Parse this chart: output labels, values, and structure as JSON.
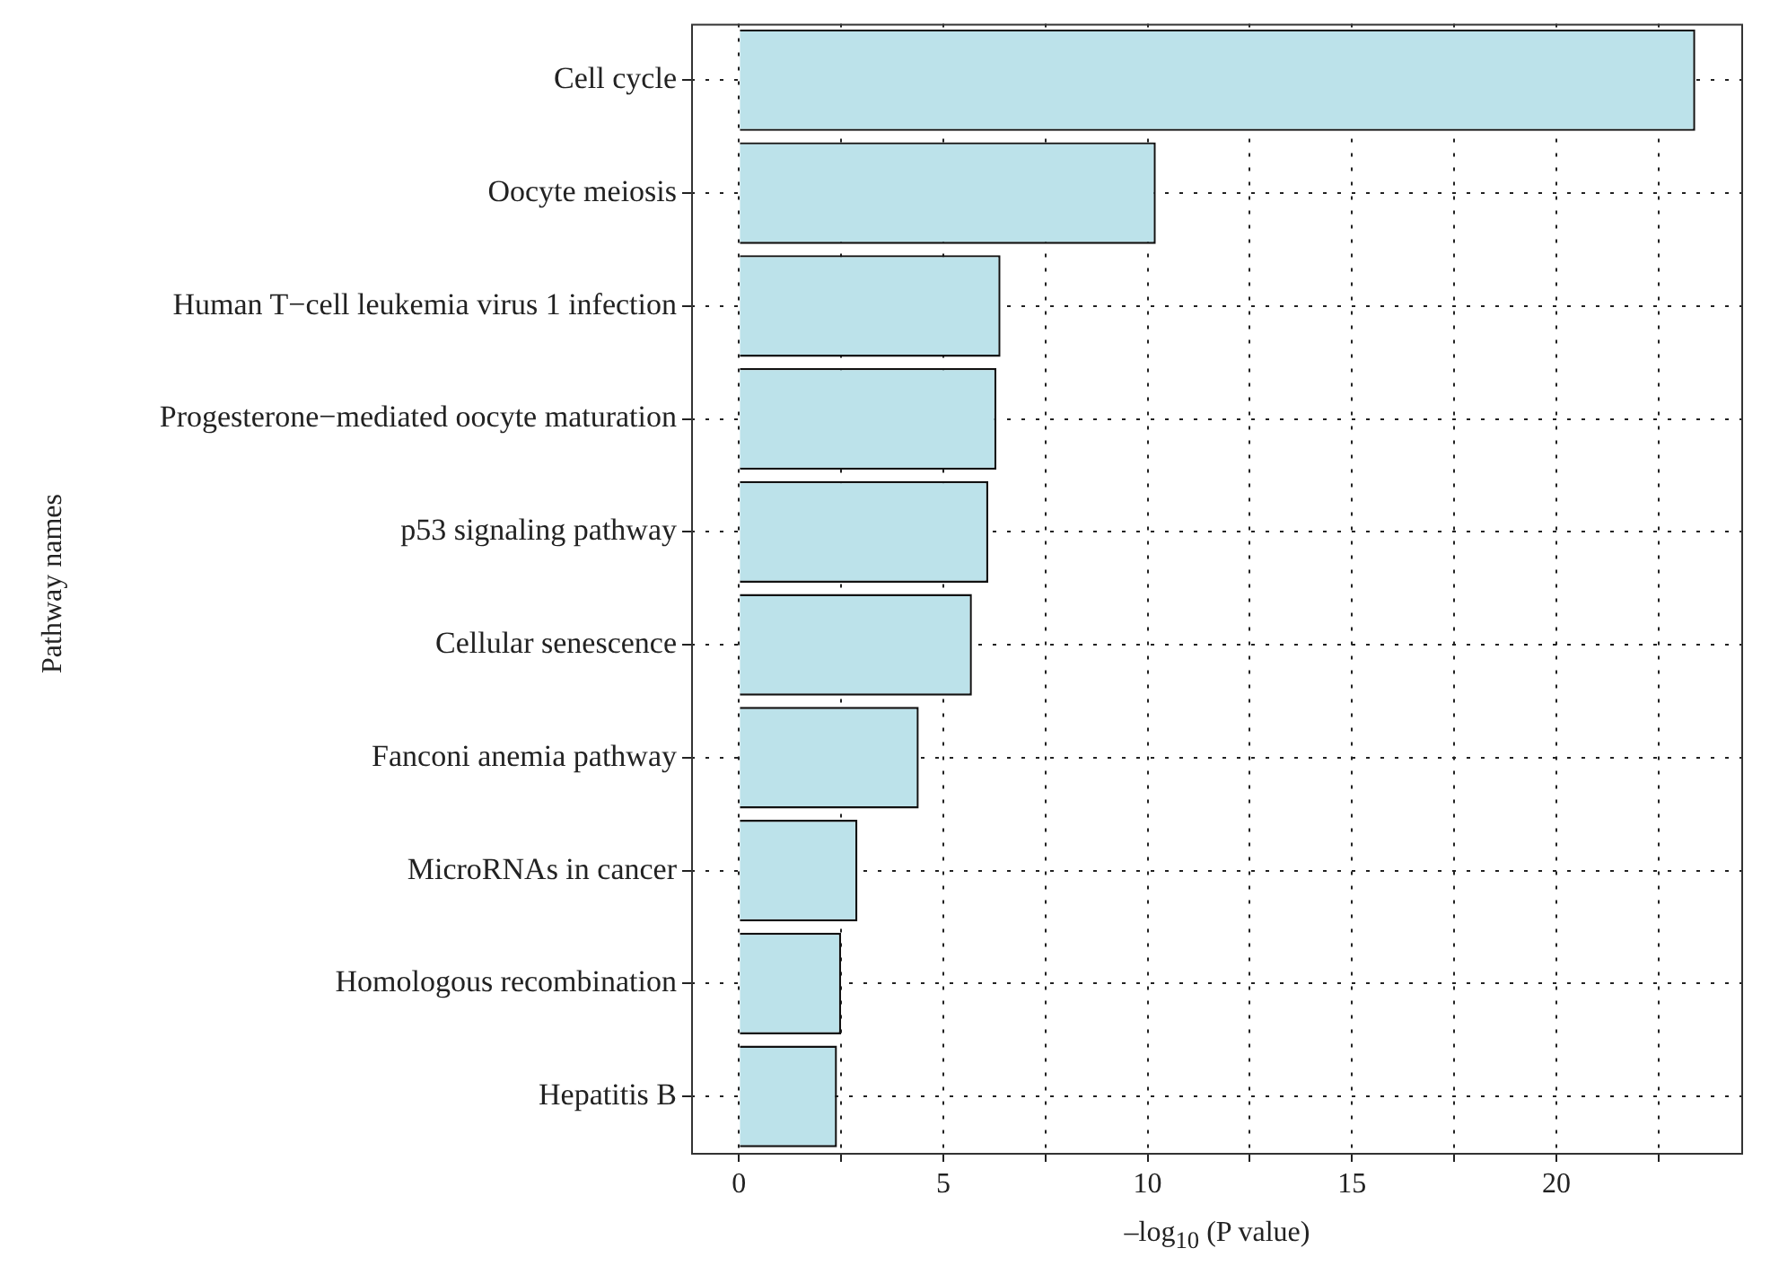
{
  "chart_data": {
    "type": "bar",
    "orientation": "horizontal",
    "categories": [
      "Cell cycle",
      "Oocyte meiosis",
      "Human T−cell leukemia virus 1 infection",
      "Progesterone−mediated oocyte maturation",
      "p53 signaling pathway",
      "Cellular senescence",
      "Fanconi anemia pathway",
      "MicroRNAs in cancer",
      "Homologous recombination",
      "Hepatitis B"
    ],
    "values": [
      23.4,
      10.2,
      6.4,
      6.3,
      6.1,
      5.7,
      4.4,
      2.9,
      2.5,
      2.4
    ],
    "color": "#bce2ea",
    "xlim": [
      -1.17,
      24.57
    ],
    "xticks": [
      0,
      {
        "value": 2.5,
        "label": null
      },
      5,
      {
        "value": 7.5,
        "label": null
      },
      10,
      {
        "value": 12.5,
        "label": null
      },
      15,
      {
        "value": 17.5,
        "label": null
      },
      20,
      {
        "value": 22.5,
        "label": null
      }
    ],
    "xlabel": "–log$_{10}$ (P value)",
    "ylabel": "Pathway names",
    "grid": true
  }
}
